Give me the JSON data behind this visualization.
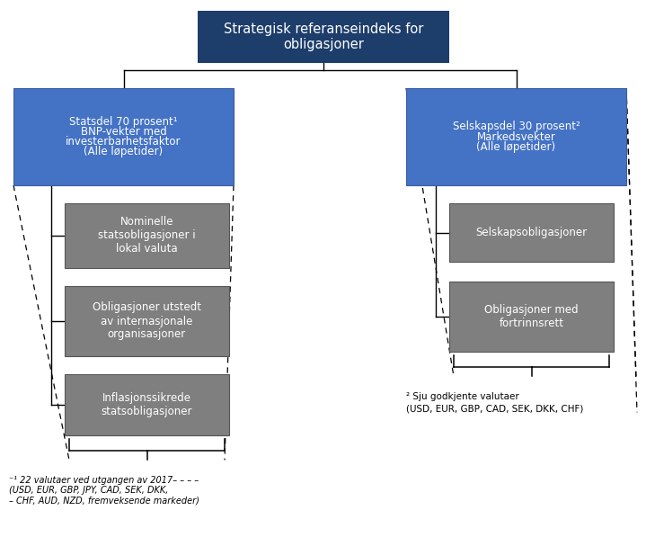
{
  "title": "Strategisk referanseindeks for\nobligasjoner",
  "title_bg": "#1d3d6b",
  "title_fg": "white",
  "blue_bg": "#4472c4",
  "gray_bg": "#7f7f7f",
  "left_top_line1": "Statsdel 70 prosent¹",
  "left_top_line2": "BNP-vekter med\ninvesterbarhetsfaktor\n(Alle løpetider)",
  "right_top_line1": "Selskapsdel 30 prosent²",
  "right_top_line2": "Markedsvekter\n(Alle løpetider)",
  "left_boxes": [
    "Nominelle\nstatsobligasjoner i\nlokal valuta",
    "Obligasjoner utstedt\nav internasjonale\norganisasjoner",
    "Inflasjonssikrede\nstatsobligasjoner"
  ],
  "right_boxes": [
    "Selskapsobligasjoner",
    "Obligasjoner med\nfortrinnsrett"
  ],
  "footnote_left_line1": "⁻¹ 22 valutaer ved utgangen av 2017– – – –",
  "footnote_left_line2": "(USD, EUR, GBP, JPY, CAD, SEK, DKK,",
  "footnote_left_line3": "– CHF, AUD, NZD, fremveksende markeder)",
  "footnote_right_line1": "² Sju godkjente valutaer",
  "footnote_right_line2": "(USD, EUR, GBP, CAD, SEK, DKK, CHF)"
}
